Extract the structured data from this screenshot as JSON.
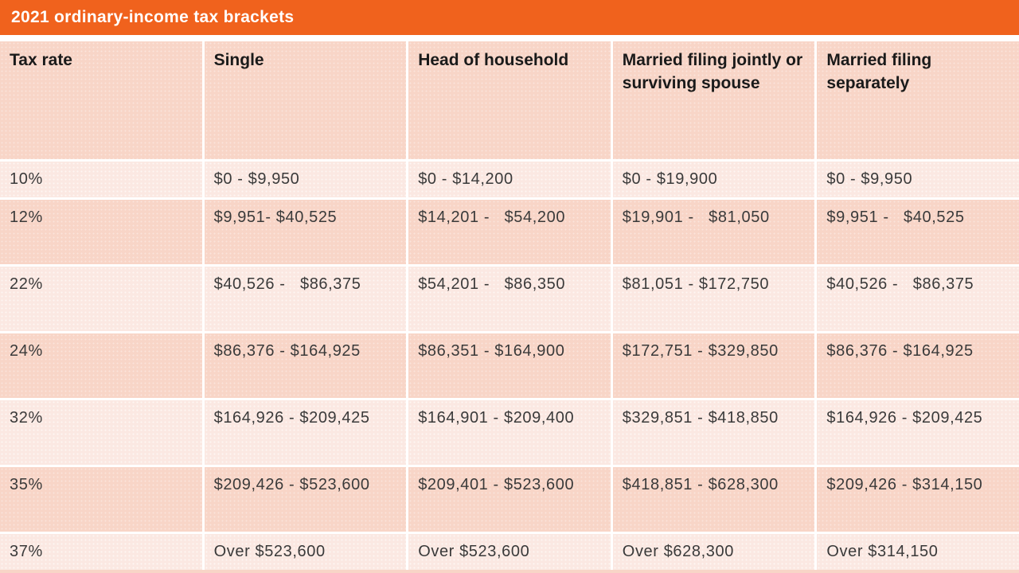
{
  "title_bar": {
    "title": "2021 ordinary-income tax brackets"
  },
  "colors": {
    "accent_orange": "#F0621D",
    "band_dark_peach": "#F8D5C7",
    "band_light_peach": "#FBE8E2",
    "title_text": "#FFFFFF",
    "header_text": "#1A1A1A",
    "body_text": "#3A3A3A"
  },
  "table": {
    "columns": [
      "Tax rate",
      "Single",
      "Head of household",
      "Married filing jointly or surviving spouse",
      "Married filing separately"
    ],
    "rows": [
      {
        "rate": "10%",
        "cells": [
          "$0 - $9,950",
          "$0 - $14,200",
          "$0 - $19,900",
          "$0 - $9,950"
        ]
      },
      {
        "rate": "12%",
        "cells": [
          "$9,951- $40,525",
          "$14,201 -   $54,200",
          "$19,901 -   $81,050",
          "$9,951 -   $40,525"
        ]
      },
      {
        "rate": "22%",
        "cells": [
          "$40,526 -   $86,375",
          "$54,201 -   $86,350",
          "$81,051 - $172,750",
          "$40,526 -   $86,375"
        ]
      },
      {
        "rate": "24%",
        "cells": [
          "$86,376 - $164,925",
          "$86,351 - $164,900",
          "$172,751 - $329,850",
          "$86,376 - $164,925"
        ]
      },
      {
        "rate": "32%",
        "cells": [
          "$164,926 - $209,425",
          "$164,901 - $209,400",
          "$329,851 - $418,850",
          "$164,926 - $209,425"
        ]
      },
      {
        "rate": "35%",
        "cells": [
          "$209,426 - $523,600",
          "$209,401 - $523,600",
          "$418,851 - $628,300",
          "$209,426 - $314,150"
        ]
      },
      {
        "rate": "37%",
        "cells": [
          "Over $523,600",
          "Over $523,600",
          "Over $628,300",
          "Over $314,150"
        ]
      }
    ]
  }
}
